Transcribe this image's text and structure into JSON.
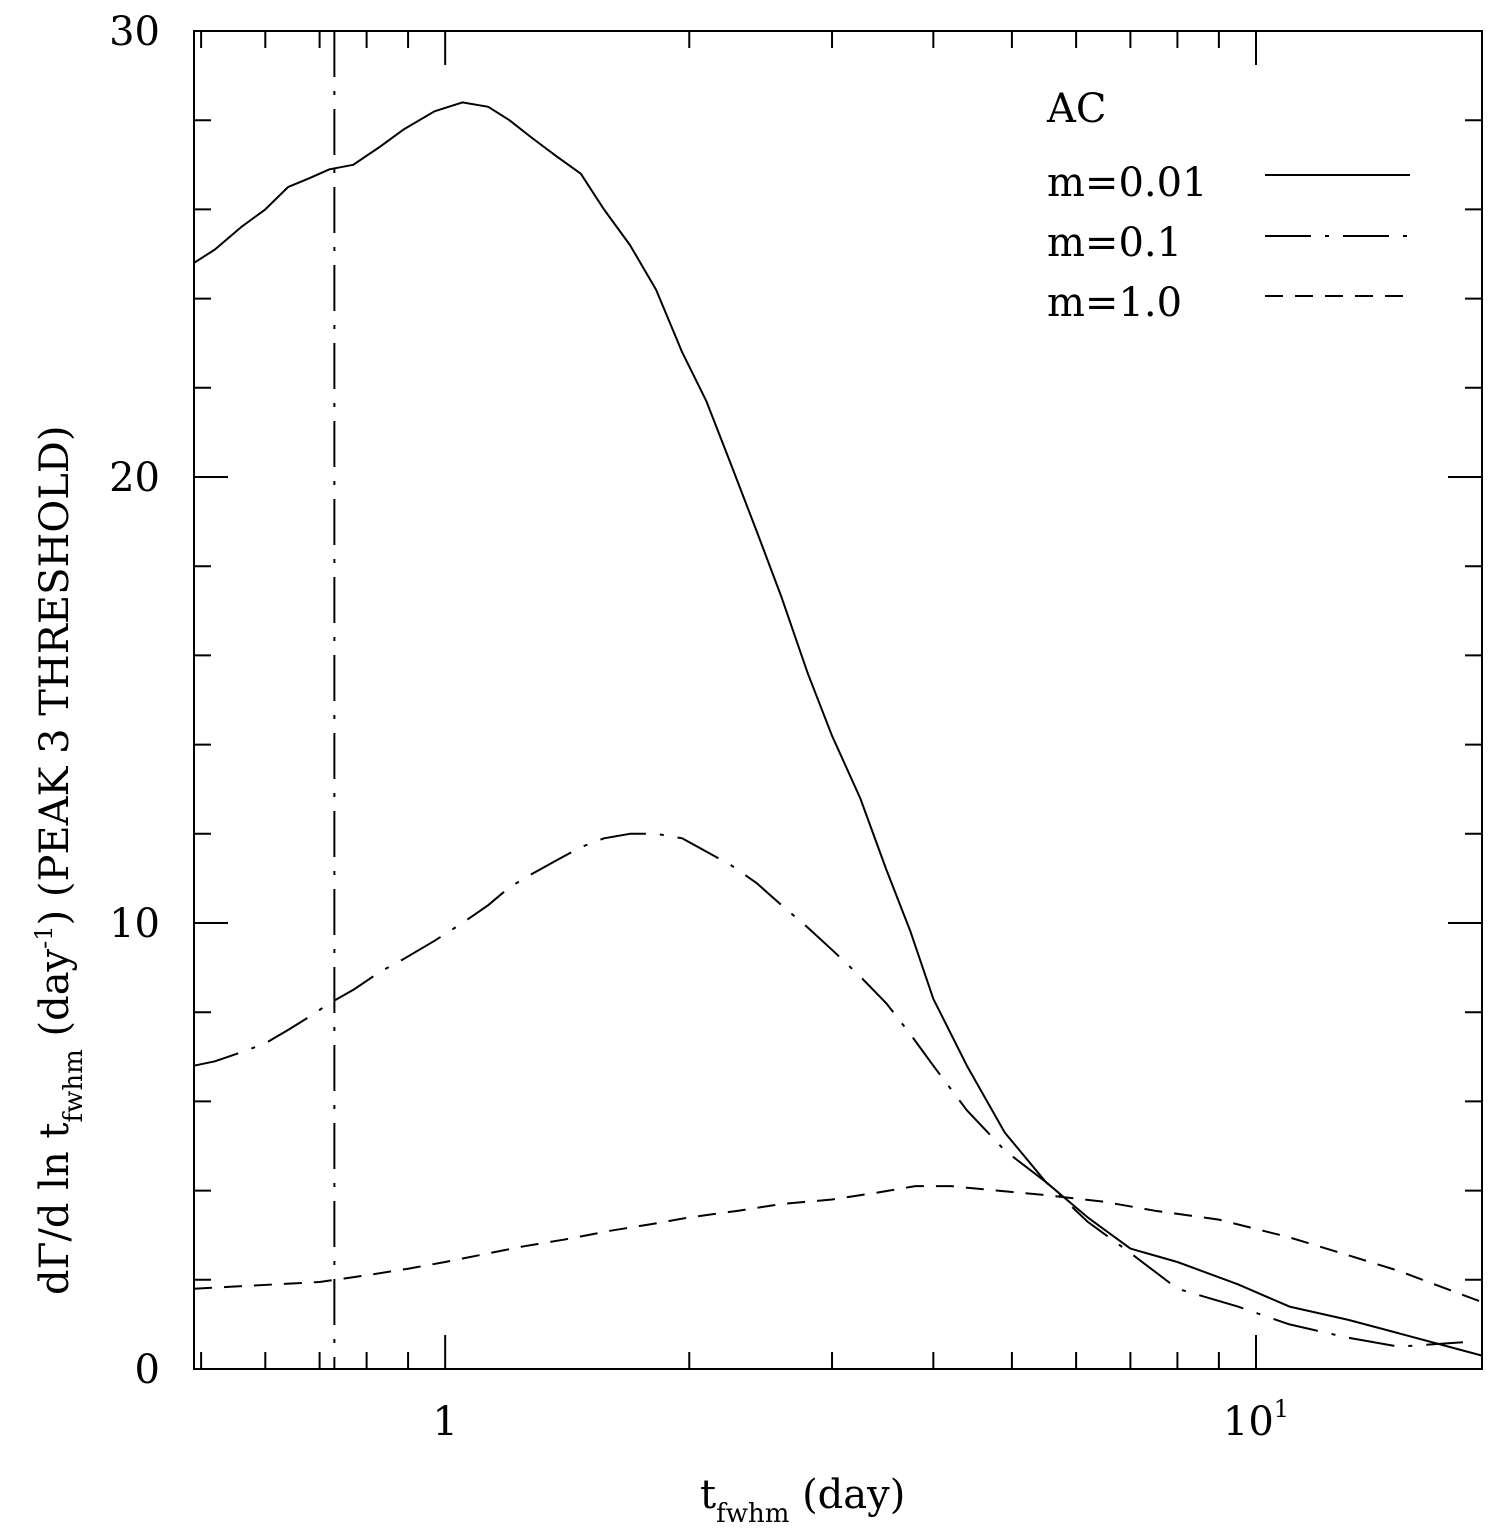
{
  "chart_data": {
    "type": "line",
    "title": "",
    "xlabel": "t_fwhm (day)",
    "ylabel": "dΓ/d ln t_fwhm (day⁻¹) (PEAK 3 THRESHOLD)",
    "xscale": "log",
    "xlim": [
      0.49,
      19.0
    ],
    "ylim": [
      0,
      30
    ],
    "x_ticks": [
      {
        "value": 1,
        "label": "1"
      },
      {
        "value": 10,
        "label": "10",
        "sup": "1"
      }
    ],
    "y_ticks": [
      {
        "value": 0,
        "label": "0"
      },
      {
        "value": 10,
        "label": "10"
      },
      {
        "value": 20,
        "label": "20"
      },
      {
        "value": 30,
        "label": "30"
      }
    ],
    "x_label_parts": {
      "main": "t",
      "sub": "fwhm",
      "rest": " (day)"
    },
    "y_label_parts": {
      "a": "dΓ/d ln t",
      "sub": "fwhm",
      "b": " (day",
      "sup": "-1",
      "c": ")  (PEAK 3 THRESHOLD)"
    },
    "legend": {
      "title": "AC",
      "position": "top-right",
      "entries": [
        "m=0.01",
        "m=0.1",
        "m=1.0"
      ]
    },
    "vline": {
      "x": 0.73,
      "style": "long-dash"
    },
    "series": [
      {
        "name": "m=0.01",
        "style": "solid",
        "x": [
          0.49,
          0.52,
          0.56,
          0.6,
          0.64,
          0.68,
          0.72,
          0.77,
          0.83,
          0.89,
          0.97,
          1.05,
          1.13,
          1.2,
          1.28,
          1.37,
          1.47,
          1.57,
          1.69,
          1.82,
          1.96,
          2.1,
          2.25,
          2.42,
          2.6,
          2.8,
          3.0,
          3.25,
          3.5,
          3.75,
          4.0,
          4.4,
          4.9,
          5.5,
          6.2,
          7.0,
          8.0,
          9.5,
          11.0,
          13.0,
          15.0,
          19.0
        ],
        "y": [
          24.8,
          25.1,
          25.6,
          26.0,
          26.5,
          26.7,
          26.9,
          27.0,
          27.4,
          27.8,
          28.2,
          28.4,
          28.3,
          28.0,
          27.6,
          27.2,
          26.8,
          26.0,
          25.2,
          24.2,
          22.8,
          21.7,
          20.3,
          18.8,
          17.3,
          15.6,
          14.2,
          12.8,
          11.2,
          9.8,
          8.3,
          6.8,
          5.3,
          4.2,
          3.4,
          2.7,
          2.4,
          1.9,
          1.4,
          1.1,
          0.8,
          0.3
        ]
      },
      {
        "name": "m=0.1",
        "style": "long-dash",
        "x": [
          0.49,
          0.52,
          0.56,
          0.6,
          0.64,
          0.68,
          0.72,
          0.77,
          0.83,
          0.89,
          0.97,
          1.05,
          1.13,
          1.2,
          1.28,
          1.37,
          1.47,
          1.57,
          1.69,
          1.82,
          1.96,
          2.1,
          2.25,
          2.42,
          2.6,
          2.8,
          3.0,
          3.25,
          3.5,
          3.75,
          4.0,
          4.4,
          4.9,
          5.5,
          6.2,
          7.0,
          8.0,
          9.5,
          11.0,
          13.0,
          15.0,
          18.0
        ],
        "y": [
          6.8,
          6.9,
          7.1,
          7.3,
          7.6,
          7.9,
          8.2,
          8.5,
          8.9,
          9.2,
          9.6,
          10.0,
          10.4,
          10.8,
          11.1,
          11.4,
          11.7,
          11.9,
          12.0,
          12.0,
          11.9,
          11.6,
          11.3,
          10.9,
          10.4,
          9.9,
          9.4,
          8.8,
          8.2,
          7.5,
          6.8,
          5.8,
          4.9,
          4.2,
          3.3,
          2.6,
          1.8,
          1.4,
          1.0,
          0.7,
          0.5,
          0.6
        ]
      },
      {
        "name": "m=1.0",
        "style": "short-dash",
        "x": [
          0.49,
          0.55,
          0.62,
          0.7,
          0.8,
          0.9,
          1.0,
          1.1,
          1.25,
          1.4,
          1.6,
          1.8,
          2.0,
          2.3,
          2.6,
          3.0,
          3.4,
          3.8,
          4.2,
          4.8,
          5.5,
          6.5,
          7.5,
          9.0,
          11.0,
          13.0,
          15.0,
          19.0
        ],
        "y": [
          1.8,
          1.85,
          1.9,
          1.95,
          2.1,
          2.25,
          2.4,
          2.55,
          2.75,
          2.9,
          3.1,
          3.25,
          3.4,
          3.55,
          3.7,
          3.8,
          3.95,
          4.1,
          4.1,
          4.0,
          3.9,
          3.75,
          3.55,
          3.35,
          2.95,
          2.55,
          2.2,
          1.5
        ]
      }
    ]
  }
}
